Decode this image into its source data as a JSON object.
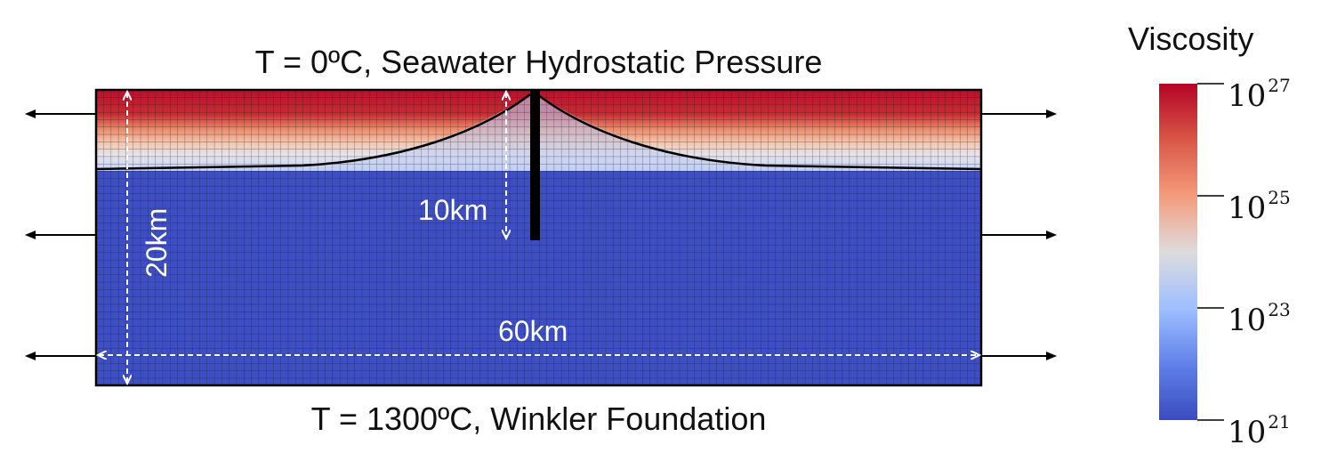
{
  "top_boundary_label": "T = 0ºC, Seawater Hydrostatic Pressure",
  "bottom_boundary_label": "T = 1300ºC, Winkler Foundation",
  "colorbar": {
    "title": "Viscosity",
    "ticks": [
      {
        "base": "10",
        "exp": "27"
      },
      {
        "base": "10",
        "exp": "25"
      },
      {
        "base": "10",
        "exp": "23"
      },
      {
        "base": "10",
        "exp": "21"
      }
    ],
    "colors": {
      "high": "#b40426",
      "mid": "#dddcdc",
      "low": "#3b4cc0"
    }
  },
  "dimensions": {
    "depth": "20km",
    "width": "60km",
    "fault_depth": "10km"
  },
  "colors": {
    "domain_low": "#3e4fc4",
    "domain_high": "#bd1e2d",
    "mesh_line": "#1a1a33",
    "annotation": "#ffffff"
  }
}
